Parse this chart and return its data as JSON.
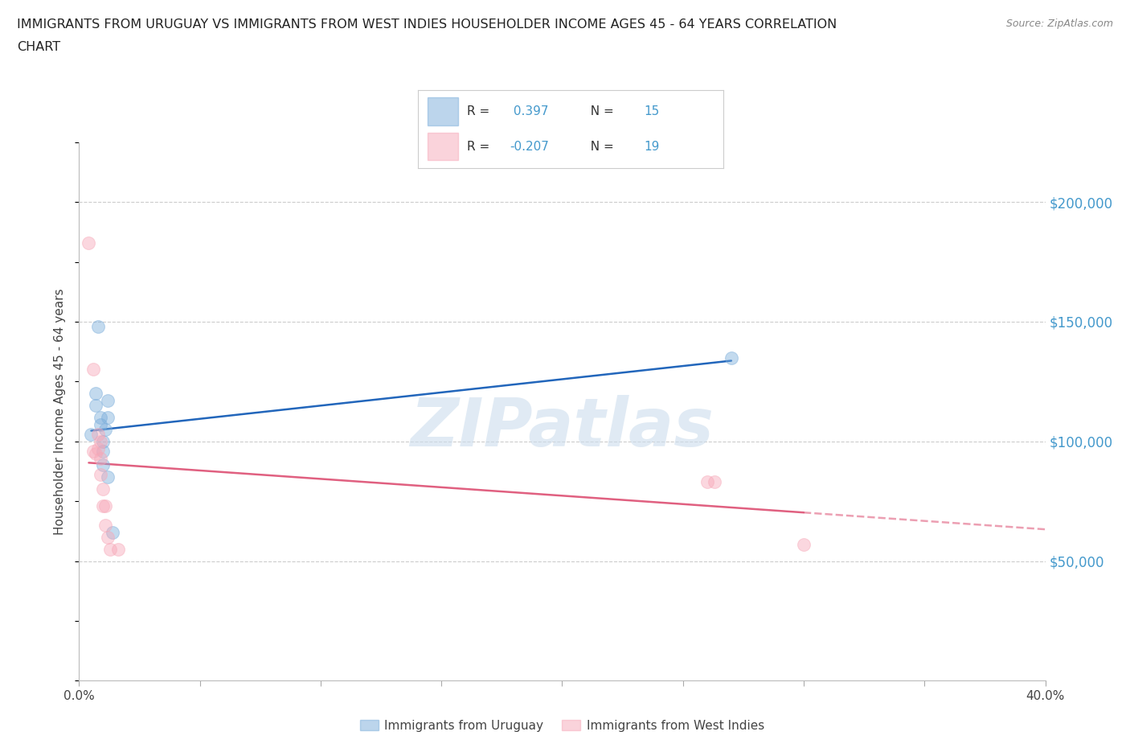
{
  "title_line1": "IMMIGRANTS FROM URUGUAY VS IMMIGRANTS FROM WEST INDIES HOUSEHOLDER INCOME AGES 45 - 64 YEARS CORRELATION",
  "title_line2": "CHART",
  "source": "Source: ZipAtlas.com",
  "ylabel": "Householder Income Ages 45 - 64 years",
  "xlim": [
    0.0,
    0.4
  ],
  "ylim": [
    0,
    225000
  ],
  "ytick_positions": [
    50000,
    100000,
    150000,
    200000
  ],
  "ytick_labels": [
    "$50,000",
    "$100,000",
    "$150,000",
    "$200,000"
  ],
  "uruguay_color": "#7aaddb",
  "west_indies_color": "#f7a8b8",
  "uruguay_line_color": "#2266bb",
  "west_indies_line_color": "#e06080",
  "r_uruguay": 0.397,
  "n_uruguay": 15,
  "r_west_indies": -0.207,
  "n_west_indies": 19,
  "uruguay_x": [
    0.005,
    0.007,
    0.007,
    0.008,
    0.009,
    0.009,
    0.01,
    0.01,
    0.01,
    0.011,
    0.012,
    0.012,
    0.012,
    0.014,
    0.27
  ],
  "uruguay_y": [
    103000,
    120000,
    115000,
    148000,
    110000,
    107000,
    100000,
    96000,
    90000,
    105000,
    117000,
    110000,
    85000,
    62000,
    135000
  ],
  "west_indies_x": [
    0.004,
    0.006,
    0.006,
    0.007,
    0.008,
    0.008,
    0.009,
    0.009,
    0.009,
    0.01,
    0.01,
    0.011,
    0.011,
    0.012,
    0.013,
    0.016,
    0.26,
    0.263,
    0.3
  ],
  "west_indies_y": [
    183000,
    130000,
    96000,
    95000,
    103000,
    97000,
    100000,
    93000,
    86000,
    80000,
    73000,
    73000,
    65000,
    60000,
    55000,
    55000,
    83000,
    83000,
    57000
  ],
  "watermark_text": "ZIPatlas",
  "background_color": "#ffffff",
  "grid_color": "#cccccc",
  "title_color": "#222222",
  "axis_label_color": "#444444",
  "ytick_color": "#4499cc",
  "source_color": "#888888",
  "marker_size": 130,
  "marker_alpha": 0.45,
  "line_width": 1.8,
  "legend_label_color": "#444444"
}
